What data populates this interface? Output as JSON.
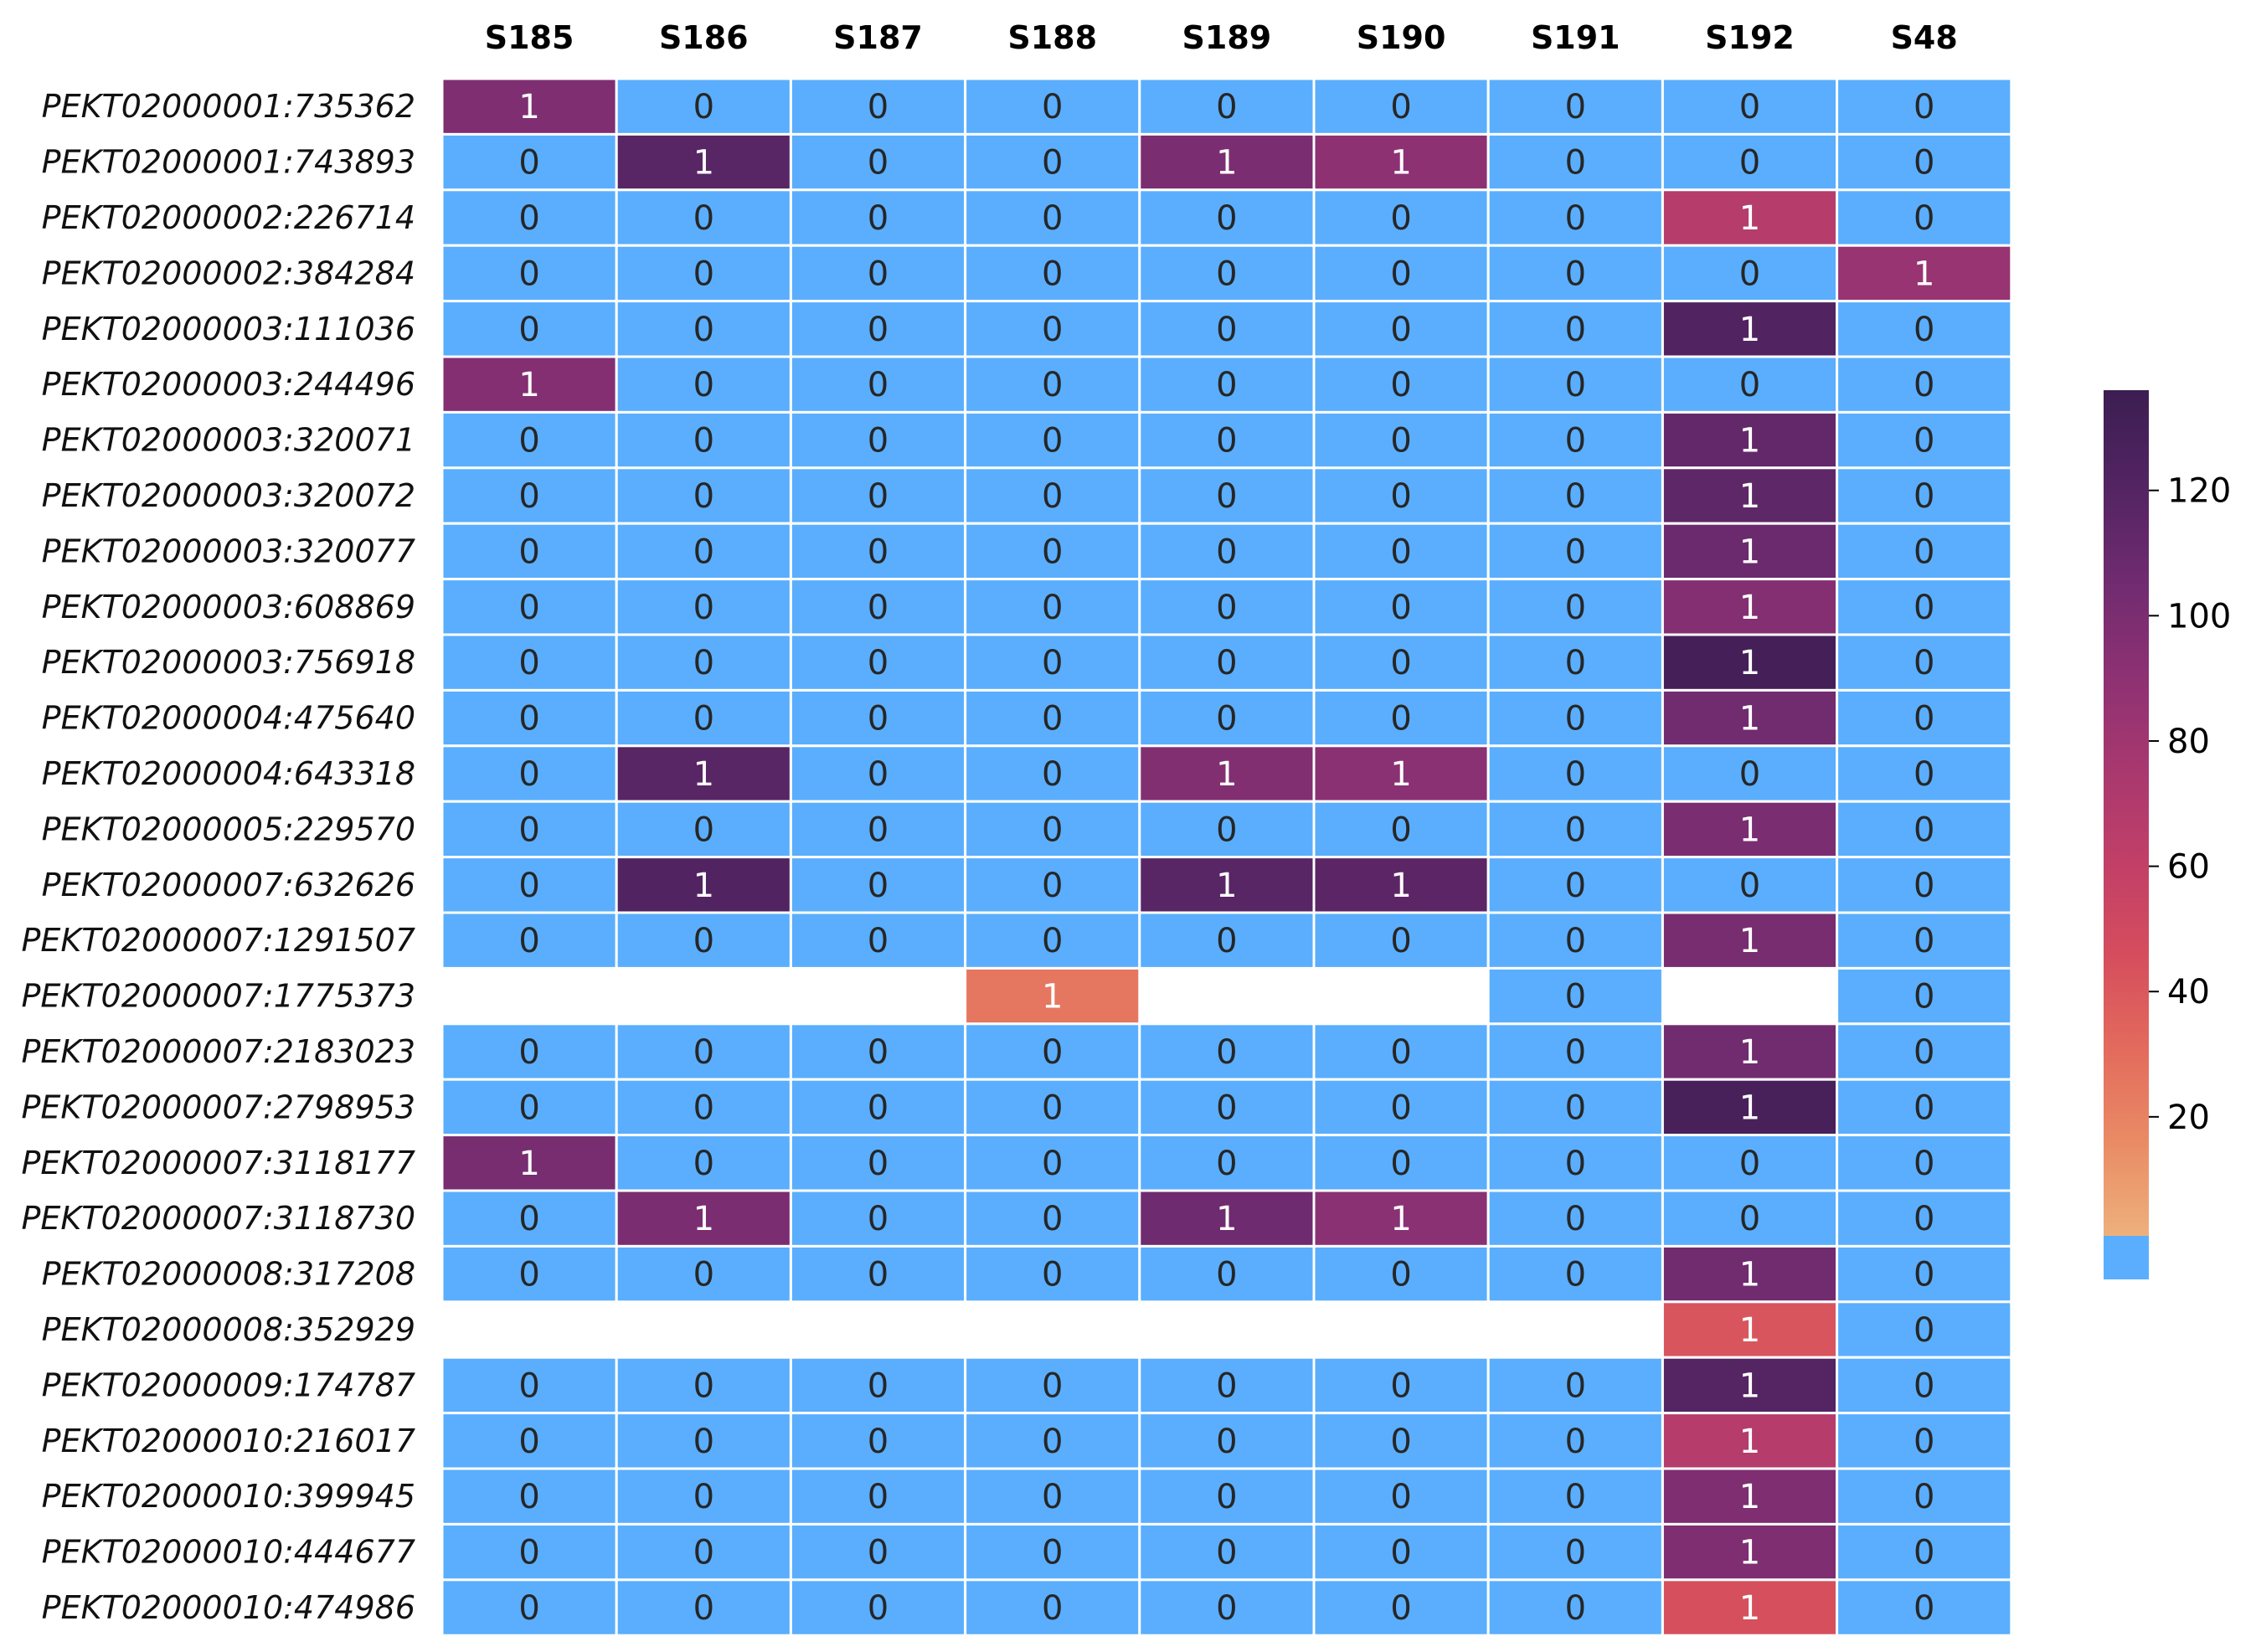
{
  "chart_data": {
    "type": "heatmap",
    "columns": [
      "S185",
      "S186",
      "S187",
      "S188",
      "S189",
      "S190",
      "S191",
      "S192",
      "S48"
    ],
    "rows": [
      "PEKT02000001:735362",
      "PEKT02000001:743893",
      "PEKT02000002:226714",
      "PEKT02000002:384284",
      "PEKT02000003:111036",
      "PEKT02000003:244496",
      "PEKT02000003:320071",
      "PEKT02000003:320072",
      "PEKT02000003:320077",
      "PEKT02000003:608869",
      "PEKT02000003:756918",
      "PEKT02000004:475640",
      "PEKT02000004:643318",
      "PEKT02000005:229570",
      "PEKT02000007:632626",
      "PEKT02000007:1291507",
      "PEKT02000007:1775373",
      "PEKT02000007:2183023",
      "PEKT02000007:2798953",
      "PEKT02000007:3118177",
      "PEKT02000007:3118730",
      "PEKT02000008:317208",
      "PEKT02000008:352929",
      "PEKT02000009:174787",
      "PEKT02000010:216017",
      "PEKT02000010:399945",
      "PEKT02000010:444677",
      "PEKT02000010:474986"
    ],
    "annotations": [
      [
        "1",
        "0",
        "0",
        "0",
        "0",
        "0",
        "0",
        "0",
        "0"
      ],
      [
        "0",
        "1",
        "0",
        "0",
        "1",
        "1",
        "0",
        "0",
        "0"
      ],
      [
        "0",
        "0",
        "0",
        "0",
        "0",
        "0",
        "0",
        "1",
        "0"
      ],
      [
        "0",
        "0",
        "0",
        "0",
        "0",
        "0",
        "0",
        "0",
        "1"
      ],
      [
        "0",
        "0",
        "0",
        "0",
        "0",
        "0",
        "0",
        "1",
        "0"
      ],
      [
        "1",
        "0",
        "0",
        "0",
        "0",
        "0",
        "0",
        "0",
        "0"
      ],
      [
        "0",
        "0",
        "0",
        "0",
        "0",
        "0",
        "0",
        "1",
        "0"
      ],
      [
        "0",
        "0",
        "0",
        "0",
        "0",
        "0",
        "0",
        "1",
        "0"
      ],
      [
        "0",
        "0",
        "0",
        "0",
        "0",
        "0",
        "0",
        "1",
        "0"
      ],
      [
        "0",
        "0",
        "0",
        "0",
        "0",
        "0",
        "0",
        "1",
        "0"
      ],
      [
        "0",
        "0",
        "0",
        "0",
        "0",
        "0",
        "0",
        "1",
        "0"
      ],
      [
        "0",
        "0",
        "0",
        "0",
        "0",
        "0",
        "0",
        "1",
        "0"
      ],
      [
        "0",
        "1",
        "0",
        "0",
        "1",
        "1",
        "0",
        "0",
        "0"
      ],
      [
        "0",
        "0",
        "0",
        "0",
        "0",
        "0",
        "0",
        "1",
        "0"
      ],
      [
        "0",
        "1",
        "0",
        "0",
        "1",
        "1",
        "0",
        "0",
        "0"
      ],
      [
        "0",
        "0",
        "0",
        "0",
        "0",
        "0",
        "0",
        "1",
        "0"
      ],
      [
        "",
        "",
        "",
        "1",
        "",
        "",
        "0",
        "",
        "0"
      ],
      [
        "0",
        "0",
        "0",
        "0",
        "0",
        "0",
        "0",
        "1",
        "0"
      ],
      [
        "0",
        "0",
        "0",
        "0",
        "0",
        "0",
        "0",
        "1",
        "0"
      ],
      [
        "1",
        "0",
        "0",
        "0",
        "0",
        "0",
        "0",
        "0",
        "0"
      ],
      [
        "0",
        "1",
        "0",
        "0",
        "1",
        "1",
        "0",
        "0",
        "0"
      ],
      [
        "0",
        "0",
        "0",
        "0",
        "0",
        "0",
        "0",
        "1",
        "0"
      ],
      [
        "",
        "",
        "",
        "",
        "",
        "",
        "",
        "1",
        "0"
      ],
      [
        "0",
        "0",
        "0",
        "0",
        "0",
        "0",
        "0",
        "1",
        "0"
      ],
      [
        "0",
        "0",
        "0",
        "0",
        "0",
        "0",
        "0",
        "1",
        "0"
      ],
      [
        "0",
        "0",
        "0",
        "0",
        "0",
        "0",
        "0",
        "1",
        "0"
      ],
      [
        "0",
        "0",
        "0",
        "0",
        "0",
        "0",
        "0",
        "1",
        "0"
      ],
      [
        "0",
        "0",
        "0",
        "0",
        "0",
        "0",
        "0",
        "1",
        "0"
      ]
    ],
    "color_values": [
      [
        98,
        0,
        0,
        0,
        0,
        0,
        0,
        0,
        0
      ],
      [
        0,
        118,
        0,
        0,
        100,
        90,
        0,
        0,
        0
      ],
      [
        0,
        0,
        0,
        0,
        0,
        0,
        0,
        68,
        0
      ],
      [
        0,
        0,
        0,
        0,
        0,
        0,
        0,
        0,
        85
      ],
      [
        0,
        0,
        0,
        0,
        0,
        0,
        0,
        122,
        0
      ],
      [
        95,
        0,
        0,
        0,
        0,
        0,
        0,
        0,
        0
      ],
      [
        0,
        0,
        0,
        0,
        0,
        0,
        0,
        112,
        0
      ],
      [
        0,
        0,
        0,
        0,
        0,
        0,
        0,
        115,
        0
      ],
      [
        0,
        0,
        0,
        0,
        0,
        0,
        0,
        108,
        0
      ],
      [
        0,
        0,
        0,
        0,
        0,
        0,
        0,
        95,
        0
      ],
      [
        0,
        0,
        0,
        0,
        0,
        0,
        0,
        130,
        0
      ],
      [
        0,
        0,
        0,
        0,
        0,
        0,
        0,
        105,
        0
      ],
      [
        0,
        118,
        0,
        0,
        96,
        92,
        0,
        0,
        0
      ],
      [
        0,
        0,
        0,
        0,
        0,
        0,
        0,
        100,
        0
      ],
      [
        0,
        122,
        0,
        0,
        118,
        116,
        0,
        0,
        0
      ],
      [
        0,
        0,
        0,
        0,
        0,
        0,
        0,
        102,
        0
      ],
      [
        null,
        null,
        null,
        25,
        null,
        null,
        0,
        null,
        0
      ],
      [
        0,
        0,
        0,
        0,
        0,
        0,
        0,
        105,
        0
      ],
      [
        0,
        0,
        0,
        0,
        0,
        0,
        0,
        128,
        0
      ],
      [
        102,
        0,
        0,
        0,
        0,
        0,
        0,
        0,
        0
      ],
      [
        0,
        100,
        0,
        0,
        106,
        92,
        0,
        0,
        0
      ],
      [
        0,
        0,
        0,
        0,
        0,
        0,
        0,
        105,
        0
      ],
      [
        null,
        null,
        null,
        null,
        null,
        null,
        null,
        42,
        0
      ],
      [
        0,
        0,
        0,
        0,
        0,
        0,
        0,
        120,
        0
      ],
      [
        0,
        0,
        0,
        0,
        0,
        0,
        0,
        68,
        0
      ],
      [
        0,
        0,
        0,
        0,
        0,
        0,
        0,
        98,
        0
      ],
      [
        0,
        0,
        0,
        0,
        0,
        0,
        0,
        98,
        0
      ],
      [
        0,
        0,
        0,
        0,
        0,
        0,
        0,
        45,
        0
      ]
    ],
    "zero_color": "#5aaefd",
    "missing_color": "#ffffff",
    "cell_border_color": "#ffffff",
    "colormap": "flare",
    "colormap_stops": [
      "#eeb07c",
      "#e98b65",
      "#e36a5d",
      "#d54d5d",
      "#c13f68",
      "#a7386f",
      "#8c3173",
      "#6f2b6f",
      "#522462",
      "#3c1e52"
    ],
    "vmin": 1,
    "vmax": 136,
    "colorbar": {
      "ticks": [
        20,
        40,
        60,
        80,
        100,
        120
      ],
      "tick_labels": [
        "20",
        "40",
        "60",
        "80",
        "100",
        "120"
      ]
    },
    "annotation_text_colors": {
      "light": "#ffffff",
      "dark": "#262626"
    },
    "title": "",
    "xlabel": "",
    "ylabel": ""
  }
}
